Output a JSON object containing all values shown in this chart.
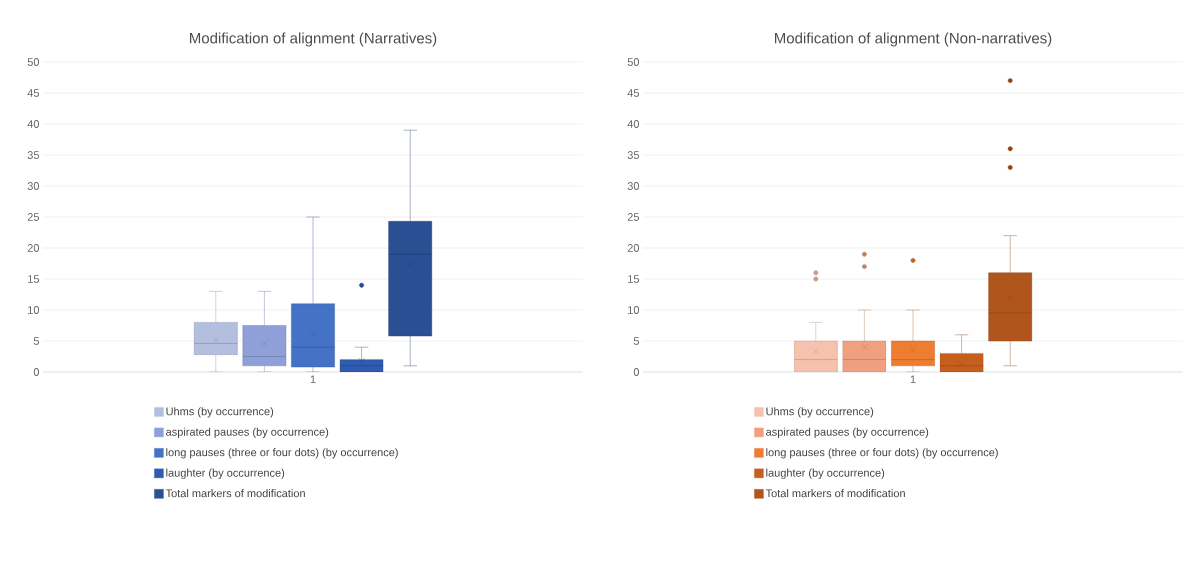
{
  "chart_data": [
    {
      "type": "box",
      "title": "Modification of alignment (Narratives)",
      "categories": [
        "1"
      ],
      "ylim": [
        0,
        50
      ],
      "yticks": [
        0,
        5,
        10,
        15,
        20,
        25,
        30,
        35,
        40,
        45,
        50
      ],
      "grid": "y",
      "legend": "bottom",
      "marker": "circle",
      "series": [
        {
          "name": "Uhms (by occurrence)",
          "color": "#b4bfe0",
          "boxes": [
            {
              "low": 0,
              "q1": 2.8,
              "median": 4.6,
              "q3": 8,
              "high": 13,
              "mean": 5.1
            }
          ]
        },
        {
          "name": "aspirated pauses (by occurrence)",
          "color": "#8fa0d8",
          "boxes": [
            {
              "low": 0,
              "q1": 1,
              "median": 2.5,
              "q3": 7.5,
              "high": 13,
              "mean": 4.6
            }
          ]
        },
        {
          "name": "long pauses (three or four dots) (by occurrence)",
          "color": "#4472c4",
          "boxes": [
            {
              "low": 0,
              "q1": 0.8,
              "median": 4,
              "q3": 11,
              "high": 25,
              "mean": 6
            }
          ]
        },
        {
          "name": "laughter (by occurrence)",
          "color": "#2f5bb0",
          "boxes": [
            {
              "low": 0,
              "q1": 0,
              "median": 1,
              "q3": 2,
              "high": 4,
              "mean": 1.8,
              "outliers": [
                14
              ]
            }
          ]
        },
        {
          "name": "Total markers of modification",
          "color": "#2b4f93",
          "boxes": [
            {
              "low": 1,
              "q1": 5.8,
              "median": 19,
              "q3": 24.3,
              "high": 39,
              "mean": 17.4
            }
          ]
        }
      ]
    },
    {
      "type": "box",
      "title": "Modification of alignment (Non-narratives)",
      "categories": [
        "1"
      ],
      "ylim": [
        0,
        50
      ],
      "yticks": [
        0,
        5,
        10,
        15,
        20,
        25,
        30,
        35,
        40,
        45,
        50
      ],
      "grid": "y",
      "legend": "bottom",
      "marker": "circle",
      "series": [
        {
          "name": "Uhms (by occurrence)",
          "color": "#f4c2ad",
          "boxes": [
            {
              "low": 0,
              "q1": 0,
              "median": 2,
              "q3": 5,
              "high": 8,
              "mean": 3.3,
              "outliers": [
                15,
                16
              ]
            }
          ]
        },
        {
          "name": "aspirated pauses (by occurrence)",
          "color": "#f0a07e",
          "boxes": [
            {
              "low": 0,
              "q1": 0,
              "median": 2,
              "q3": 5,
              "high": 10,
              "mean": 4,
              "outliers": [
                17,
                19
              ]
            }
          ]
        },
        {
          "name": "long pauses (three or four dots) (by occurrence)",
          "color": "#ed7d31",
          "boxes": [
            {
              "low": 0,
              "q1": 1,
              "median": 2,
              "q3": 5,
              "high": 10,
              "mean": 3.5,
              "outliers": [
                18
              ]
            }
          ]
        },
        {
          "name": "laughter (by occurrence)",
          "color": "#c65f1e",
          "boxes": [
            {
              "low": 0,
              "q1": 0,
              "median": 1,
              "q3": 3,
              "high": 6,
              "mean": 1.3
            }
          ]
        },
        {
          "name": "Total markers of modification",
          "color": "#b0561c",
          "boxes": [
            {
              "low": 1,
              "q1": 5,
              "median": 9.5,
              "q3": 16,
              "high": 22,
              "mean": 12,
              "outliers": [
                33,
                36,
                47
              ]
            }
          ]
        }
      ]
    }
  ]
}
